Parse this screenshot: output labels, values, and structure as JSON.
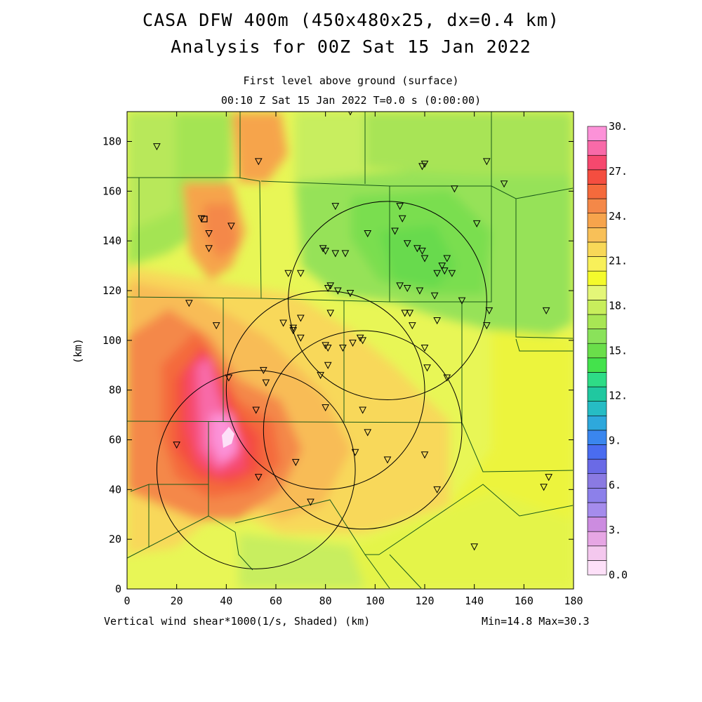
{
  "title": "CASA DFW 400m (450x480x25, dx=0.4 km)",
  "subtitle": "Analysis for 00Z Sat 15 Jan 2022",
  "level_label": "First level above ground (surface)",
  "time_label": "00:10 Z Sat 15 Jan 2022    T=0.0 s (0:00:00)",
  "footer_left": "Vertical wind shear*1000(1/s, Shaded)  (km)",
  "footer_right": "Min=14.8 Max=30.3",
  "chart_data": {
    "type": "heatmap",
    "title": "CASA DFW 400m (450x480x25, dx=0.4 km)",
    "xlabel": "",
    "ylabel": "(km)",
    "xlim": [
      0,
      180
    ],
    "ylim": [
      0,
      192
    ],
    "x_ticks": [
      "0",
      "20",
      "40",
      "60",
      "80",
      "100",
      "120",
      "140",
      "160",
      "180"
    ],
    "y_ticks": [
      "0",
      "20",
      "40",
      "60",
      "80",
      "100",
      "120",
      "140",
      "160",
      "180"
    ],
    "colorbar": {
      "labels": [
        "0.0",
        "3.",
        "6.",
        "9.",
        "12.",
        "15.",
        "18.",
        "21.",
        "24.",
        "27.",
        "30."
      ],
      "colors": [
        "#fde0f8",
        "#f4c8ee",
        "#e6a6e4",
        "#cc8ce0",
        "#a58cec",
        "#8c80ea",
        "#8a7ae2",
        "#6a6ae6",
        "#4a6cf0",
        "#3a86ee",
        "#2ea8dc",
        "#26bcc4",
        "#20c8a0",
        "#2edc86",
        "#44e24c",
        "#6ade4a",
        "#8ae25a",
        "#a8e654",
        "#c8ee5c",
        "#e4f678",
        "#f4fa2c",
        "#f8f05a",
        "#f8d858",
        "#f8c058",
        "#f6a44c",
        "#f48848",
        "#f46a3c",
        "#f44e40",
        "#f6486e",
        "#f86aa8",
        "#fc92d8"
      ]
    },
    "field_min": 14.8,
    "field_max": 30.3,
    "range_rings_center_km": [
      [
        80,
        80
      ],
      [
        105,
        116
      ],
      [
        95,
        64
      ],
      [
        52,
        48
      ]
    ],
    "range_ring_radius_km": 40,
    "stations_km": [
      [
        12,
        178
      ],
      [
        53,
        172
      ],
      [
        90,
        192
      ],
      [
        30,
        149
      ],
      [
        33,
        143
      ],
      [
        33,
        137
      ],
      [
        42,
        146
      ],
      [
        25,
        115
      ],
      [
        36,
        106
      ],
      [
        65,
        127
      ],
      [
        70,
        127
      ],
      [
        79,
        137
      ],
      [
        80,
        136
      ],
      [
        84,
        135
      ],
      [
        88,
        135
      ],
      [
        84,
        154
      ],
      [
        97,
        143
      ],
      [
        108,
        144
      ],
      [
        110,
        154
      ],
      [
        111,
        149
      ],
      [
        113,
        139
      ],
      [
        117,
        137
      ],
      [
        119,
        136
      ],
      [
        120,
        133
      ],
      [
        125,
        127
      ],
      [
        127,
        130
      ],
      [
        128,
        128
      ],
      [
        129,
        133
      ],
      [
        131,
        127
      ],
      [
        119,
        170
      ],
      [
        120,
        171
      ],
      [
        132,
        161
      ],
      [
        145,
        172
      ],
      [
        152,
        163
      ],
      [
        141,
        147
      ],
      [
        110,
        122
      ],
      [
        113,
        121
      ],
      [
        118,
        120
      ],
      [
        124,
        118
      ],
      [
        135,
        116
      ],
      [
        146,
        112
      ],
      [
        145,
        106
      ],
      [
        112,
        111
      ],
      [
        114,
        111
      ],
      [
        115,
        106
      ],
      [
        125,
        108
      ],
      [
        169,
        112
      ],
      [
        81,
        121
      ],
      [
        82,
        122
      ],
      [
        85,
        120
      ],
      [
        90,
        119
      ],
      [
        82,
        111
      ],
      [
        63,
        107
      ],
      [
        67,
        104
      ],
      [
        67,
        105
      ],
      [
        70,
        109
      ],
      [
        70,
        101
      ],
      [
        80,
        98
      ],
      [
        81,
        97
      ],
      [
        87,
        97
      ],
      [
        91,
        99
      ],
      [
        94,
        101
      ],
      [
        95,
        100
      ],
      [
        120,
        97
      ],
      [
        121,
        89
      ],
      [
        129,
        85
      ],
      [
        78,
        86
      ],
      [
        81,
        90
      ],
      [
        55,
        88
      ],
      [
        56,
        83
      ],
      [
        41,
        85
      ],
      [
        80,
        73
      ],
      [
        52,
        72
      ],
      [
        95,
        72
      ],
      [
        97,
        63
      ],
      [
        20,
        58
      ],
      [
        68,
        51
      ],
      [
        92,
        55
      ],
      [
        105,
        52
      ],
      [
        120,
        54
      ],
      [
        53,
        45
      ],
      [
        74,
        35
      ],
      [
        125,
        40
      ],
      [
        168,
        41
      ],
      [
        170,
        45
      ],
      [
        140,
        17
      ]
    ]
  }
}
